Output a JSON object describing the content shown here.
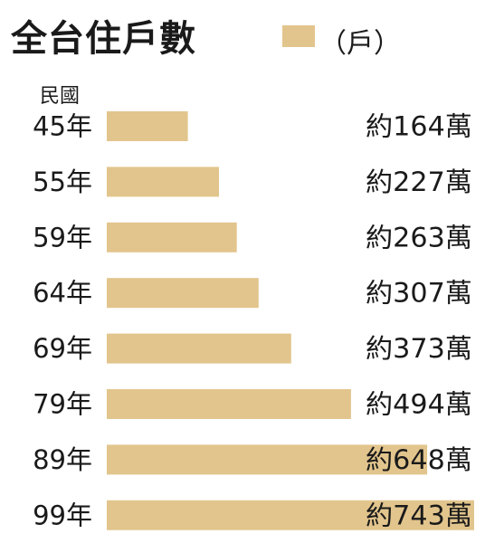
{
  "chart_data": {
    "type": "bar",
    "title": "全台住戶數",
    "legend": {
      "label": "（戶）",
      "color": "#e2c58d"
    },
    "category_axis_label": "民國",
    "categories": [
      "45年",
      "55年",
      "59年",
      "64年",
      "69年",
      "79年",
      "89年",
      "99年"
    ],
    "values": [
      164,
      227,
      263,
      307,
      373,
      494,
      648,
      743
    ],
    "value_labels": [
      "約164萬",
      "約227萬",
      "約263萬",
      "約307萬",
      "約373萬",
      "約494萬",
      "約648萬",
      "約743萬"
    ],
    "orientation": "horizontal",
    "bar_color": "#e2c58d",
    "xlim": [
      0,
      743
    ]
  }
}
